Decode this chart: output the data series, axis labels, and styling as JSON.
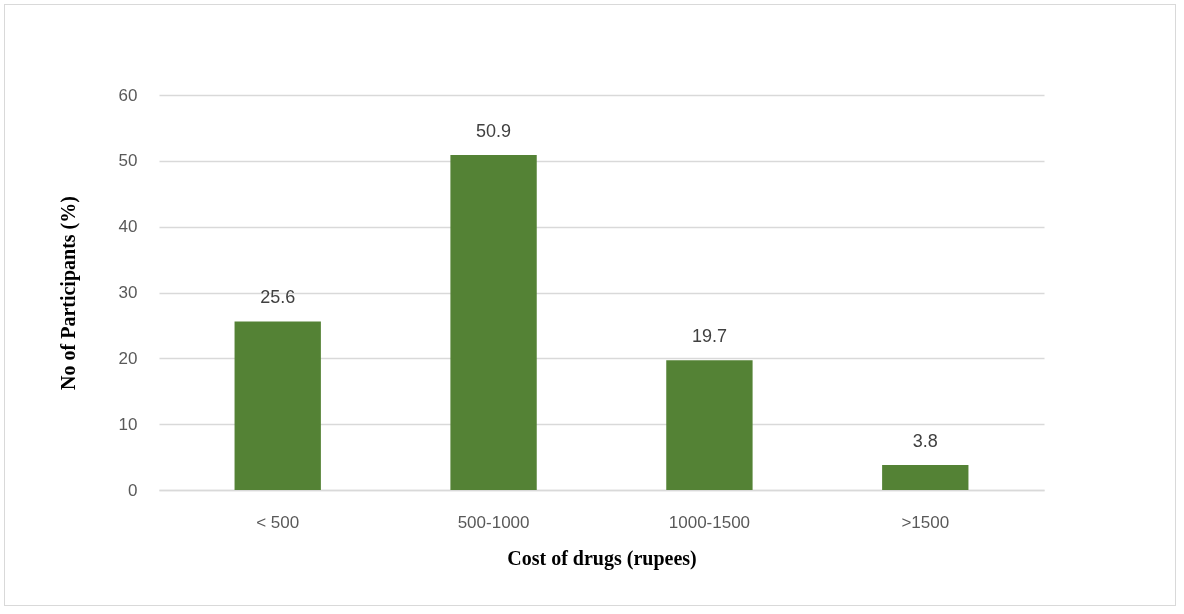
{
  "chart_data": {
    "type": "bar",
    "xlabel": "Cost of drugs (rupees)",
    "ylabel": "No of Participants (%)",
    "categories": [
      "< 500",
      "500-1000",
      "1000-1500",
      ">1500"
    ],
    "values": [
      25.6,
      50.9,
      19.7,
      3.8
    ],
    "color": "#548235",
    "ylim": [
      0,
      60
    ],
    "yticks": [
      0,
      10,
      20,
      30,
      40,
      50,
      60
    ],
    "grid": "y",
    "data_labels": true
  }
}
